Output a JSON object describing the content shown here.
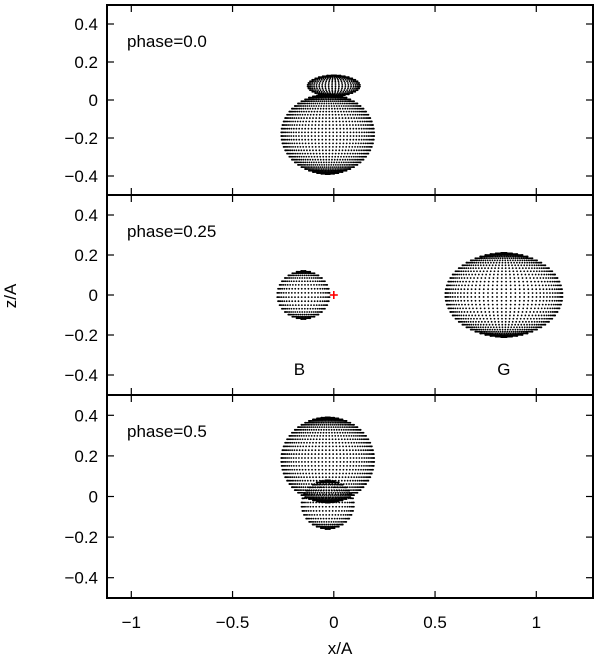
{
  "chart_data": {
    "type": "scatter",
    "xlabel": "x/A",
    "ylabel": "z/A",
    "xlim": [
      -1.12,
      1.28
    ],
    "x_ticks": [
      {
        "value": -1,
        "label": "−1"
      },
      {
        "value": -0.5,
        "label": "−0.5"
      },
      {
        "value": 0,
        "label": "0"
      },
      {
        "value": 0.5,
        "label": "0.5"
      },
      {
        "value": 1,
        "label": "1"
      }
    ],
    "grid": false,
    "legend": "none",
    "point_color": "#000000",
    "marker_color": "#ff0000",
    "panels": [
      {
        "title": "phase=0.0",
        "ylim": [
          -0.5,
          0.5
        ],
        "y_ticks": [
          {
            "value": 0.4,
            "label": "0.4"
          },
          {
            "value": 0.2,
            "label": "0.2"
          },
          {
            "value": 0,
            "label": "0"
          },
          {
            "value": -0.2,
            "label": "−0.2"
          },
          {
            "value": -0.4,
            "label": "−0.4"
          }
        ],
        "bodies": [
          {
            "kind": "giant",
            "center": [
              -0.03,
              -0.18
            ],
            "rx": 0.23,
            "ry": 0.21
          },
          {
            "kind": "dwarf",
            "center": [
              0.0,
              0.075
            ],
            "rx": 0.13,
            "ry": 0.055
          }
        ],
        "annotations": []
      },
      {
        "title": "phase=0.25",
        "ylim": [
          -0.5,
          0.5
        ],
        "y_ticks": [
          {
            "value": 0.4,
            "label": "0.4"
          },
          {
            "value": 0.2,
            "label": "0.2"
          },
          {
            "value": 0,
            "label": "0"
          },
          {
            "value": -0.2,
            "label": "−0.2"
          },
          {
            "value": -0.4,
            "label": "−0.4"
          }
        ],
        "bodies": [
          {
            "kind": "dwarf",
            "center": [
              -0.15,
              0.0
            ],
            "rx": 0.13,
            "ry": 0.12
          },
          {
            "kind": "giant",
            "center": [
              0.84,
              0.0
            ],
            "rx": 0.29,
            "ry": 0.21
          }
        ],
        "annotations": [
          {
            "text": "B",
            "x": -0.17,
            "y": -0.37
          },
          {
            "text": "G",
            "x": 0.84,
            "y": -0.37
          }
        ],
        "marker": {
          "x": 0.0,
          "y": 0.0,
          "symbol": "+"
        }
      },
      {
        "title": "phase=0.5",
        "ylim": [
          -0.5,
          0.5
        ],
        "y_ticks": [
          {
            "value": 0.4,
            "label": "0.4"
          },
          {
            "value": 0.2,
            "label": "0.2"
          },
          {
            "value": 0,
            "label": "0"
          },
          {
            "value": -0.2,
            "label": "−0.2"
          },
          {
            "value": -0.4,
            "label": "−0.4"
          }
        ],
        "bodies": [
          {
            "kind": "giant",
            "center": [
              -0.03,
              0.18
            ],
            "rx": 0.23,
            "ry": 0.21
          },
          {
            "kind": "dwarf",
            "center": [
              -0.03,
              -0.04
            ],
            "rx": 0.13,
            "ry": 0.12
          }
        ],
        "annotations": []
      }
    ]
  }
}
